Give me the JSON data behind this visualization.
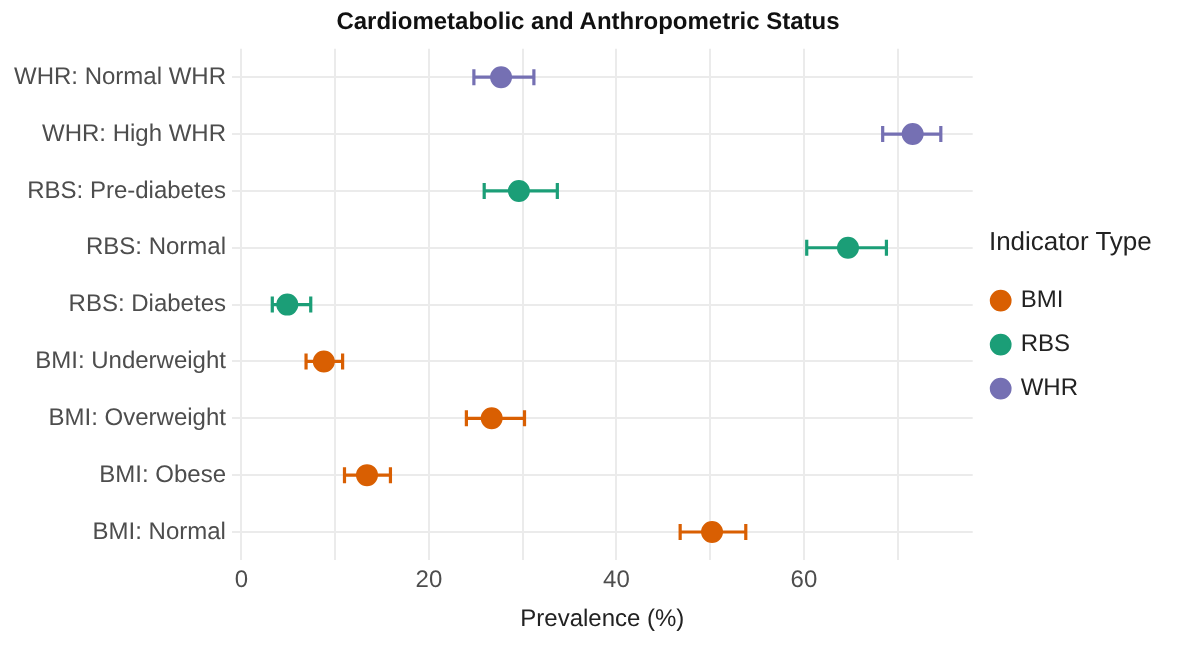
{
  "chart_data": {
    "type": "scatter",
    "orientation": "horizontal",
    "title": "Cardiometabolic and Anthropometric Status",
    "xlabel": "Prevalence (%)",
    "legend_title": "Indicator Type",
    "legend": "right",
    "grid": true,
    "marker": "circle",
    "categories": [
      "WHR: Normal WHR",
      "WHR: High WHR",
      "RBS: Pre-diabetes",
      "RBS: Normal",
      "RBS: Diabetes",
      "BMI: Underweight",
      "BMI: Overweight",
      "BMI: Obese",
      "BMI: Normal"
    ],
    "xlim": [
      -1,
      78
    ],
    "xticks": [
      0,
      {
        "value": 10,
        "label": null
      },
      20,
      {
        "value": 30,
        "label": null
      },
      40,
      {
        "value": 50,
        "label": null
      },
      60,
      {
        "value": 70,
        "label": null
      }
    ],
    "series": [
      {
        "name": "BMI",
        "color": "#d95f02",
        "values": [
          null,
          null,
          null,
          null,
          null,
          8.8,
          26.7,
          13.4,
          50.2
        ],
        "errors": [
          null,
          null,
          null,
          null,
          null,
          [
            6.9,
            10.8
          ],
          [
            24.0,
            30.2
          ],
          [
            11.0,
            15.9
          ],
          [
            46.8,
            53.8
          ]
        ]
      },
      {
        "name": "RBS",
        "color": "#1b9e77",
        "values": [
          null,
          null,
          29.6,
          64.7,
          4.9,
          null,
          null,
          null,
          null
        ],
        "errors": [
          null,
          null,
          [
            25.9,
            33.7
          ],
          [
            60.3,
            68.8
          ],
          [
            3.3,
            7.4
          ],
          null,
          null,
          null,
          null
        ]
      },
      {
        "name": "WHR",
        "color": "#7570b3",
        "values": [
          27.7,
          71.6,
          null,
          null,
          null,
          null,
          null,
          null,
          null
        ],
        "errors": [
          [
            24.8,
            31.2
          ],
          [
            68.4,
            74.6
          ],
          null,
          null,
          null,
          null,
          null,
          null,
          null
        ]
      }
    ]
  }
}
